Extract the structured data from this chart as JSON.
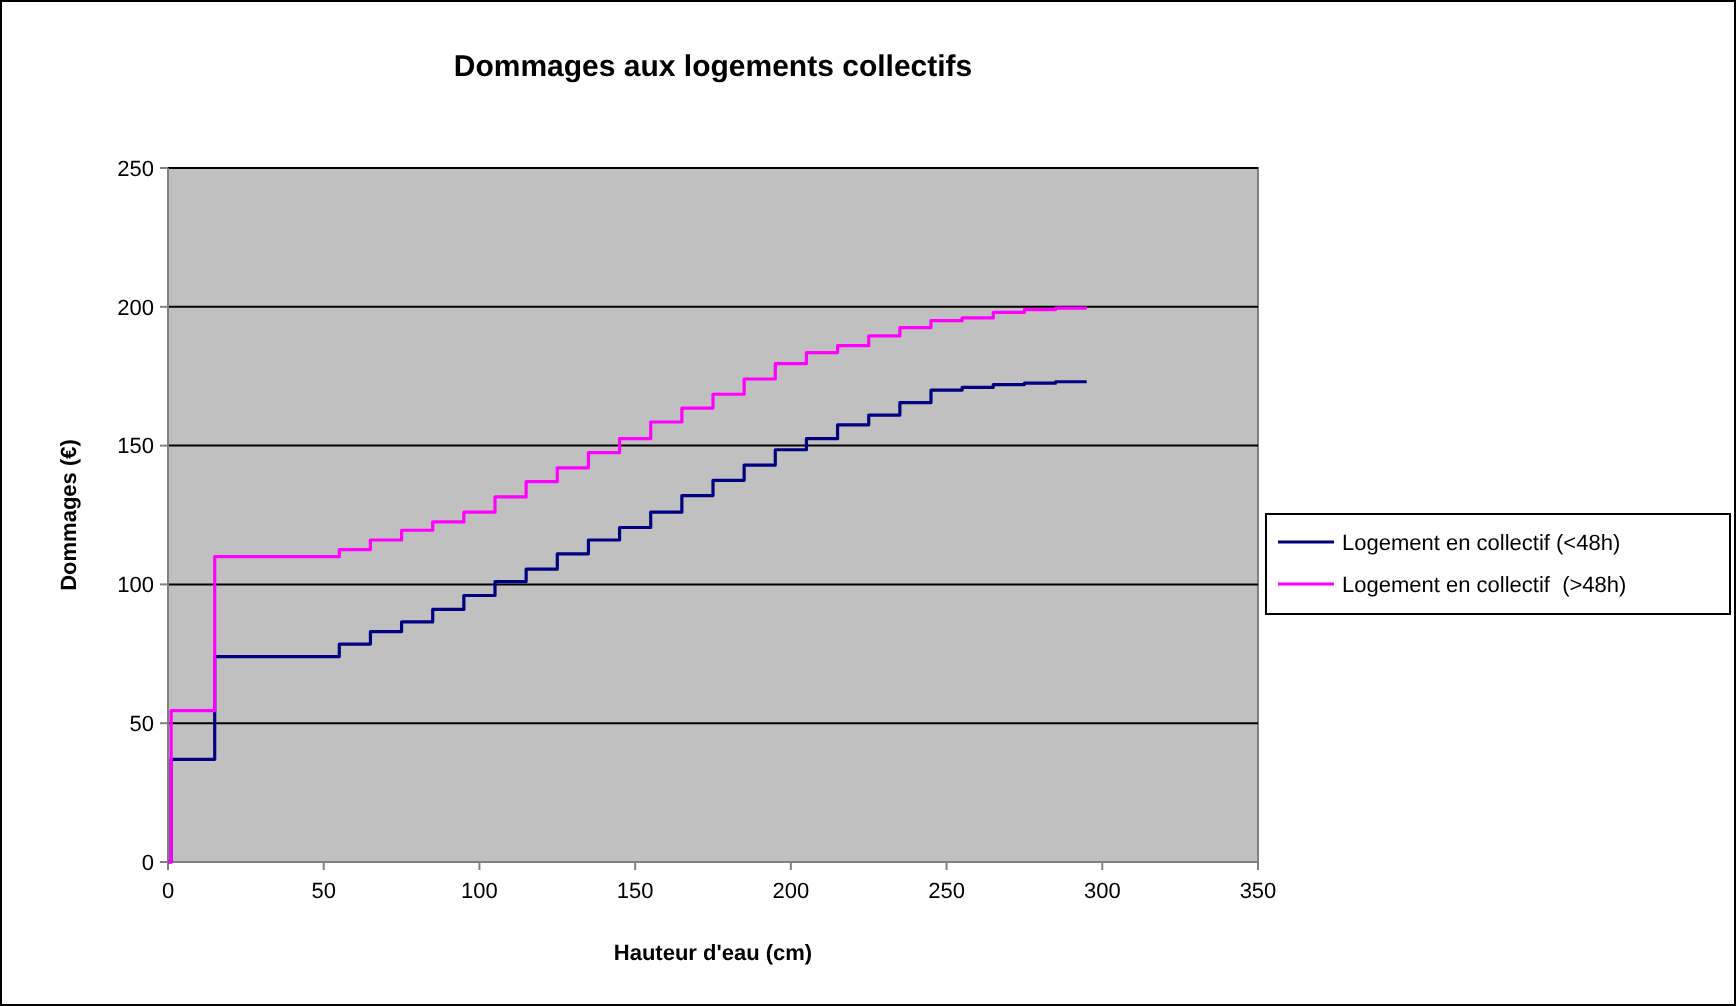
{
  "chart_data": {
    "type": "step",
    "title": "Dommages aux logements collectifs",
    "xlabel": "Hauteur d'eau (cm)",
    "ylabel": "Dommages (€)",
    "x": [
      0,
      1,
      15,
      55,
      65,
      75,
      85,
      95,
      105,
      115,
      125,
      135,
      145,
      155,
      165,
      175,
      185,
      195,
      205,
      215,
      225,
      235,
      245,
      255,
      265,
      275,
      285,
      295
    ],
    "series": [
      {
        "name": "Logement en collectif (<48h)",
        "color": "#000080",
        "values": [
          0,
          37,
          74,
          78.5,
          83,
          86.5,
          91,
          96,
          101,
          105.5,
          111,
          116,
          120.5,
          126,
          132,
          137.5,
          143,
          148.5,
          152.5,
          157.5,
          161,
          165.5,
          170,
          171,
          172,
          172.5,
          173,
          173
        ]
      },
      {
        "name": "Logement en collectif  (>48h)",
        "color": "#ff00ff",
        "values": [
          0,
          54.5,
          110,
          112.5,
          116,
          119.5,
          122.5,
          126,
          131.5,
          137,
          142,
          147.5,
          152.5,
          158.5,
          163.5,
          168.5,
          174,
          179.5,
          183.5,
          186,
          189.5,
          192.5,
          195,
          196,
          198,
          199,
          199.5,
          199.5
        ]
      }
    ],
    "xlim": [
      0,
      350
    ],
    "xticks": [
      0,
      50,
      100,
      150,
      200,
      250,
      300,
      350
    ],
    "ylim": [
      0,
      250
    ],
    "yticks": [
      0,
      50,
      100,
      150,
      200,
      250
    ],
    "grid": "y",
    "legend": "right"
  }
}
